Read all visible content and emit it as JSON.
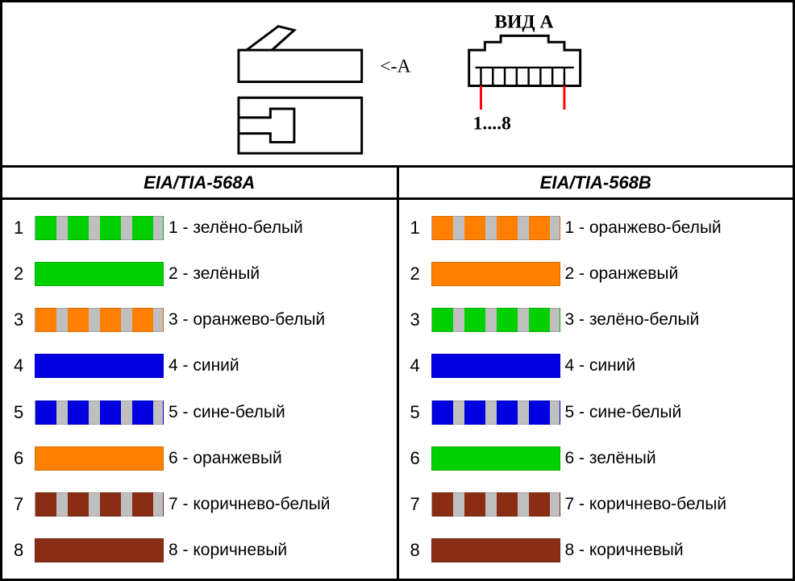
{
  "topLabels": {
    "view": "ВИД А",
    "arrow": "<-А",
    "pins": "1....8"
  },
  "colors": {
    "green": "#00d000",
    "orange": "#ff7f00",
    "blue": "#0000e0",
    "brown": "#8b2d14",
    "stripe": "#bfbfbf",
    "red": "#ff0000",
    "black": "#000000"
  },
  "swatch": {
    "width": 160,
    "height": 30,
    "stripeCount": 4
  },
  "standards": [
    {
      "title": "EIA/TIA-568A",
      "wires": [
        {
          "pin": 1,
          "label": "1 - зелёно-белый",
          "color": "green",
          "striped": true
        },
        {
          "pin": 2,
          "label": "2 - зелёный",
          "color": "green",
          "striped": false
        },
        {
          "pin": 3,
          "label": "3 - оранжево-белый",
          "color": "orange",
          "striped": true
        },
        {
          "pin": 4,
          "label": "4 - синий",
          "color": "blue",
          "striped": false
        },
        {
          "pin": 5,
          "label": "5 - сине-белый",
          "color": "blue",
          "striped": true
        },
        {
          "pin": 6,
          "label": "6 - оранжевый",
          "color": "orange",
          "striped": false
        },
        {
          "pin": 7,
          "label": "7 - коричнево-белый",
          "color": "brown",
          "striped": true
        },
        {
          "pin": 8,
          "label": "8 - коричневый",
          "color": "brown",
          "striped": false
        }
      ]
    },
    {
      "title": "EIA/TIA-568B",
      "wires": [
        {
          "pin": 1,
          "label": "1 - оранжево-белый",
          "color": "orange",
          "striped": true
        },
        {
          "pin": 2,
          "label": "2 - оранжевый",
          "color": "orange",
          "striped": false
        },
        {
          "pin": 3,
          "label": "3 - зелёно-белый",
          "color": "green",
          "striped": true
        },
        {
          "pin": 4,
          "label": "4 - синий",
          "color": "blue",
          "striped": false
        },
        {
          "pin": 5,
          "label": "5 - сине-белый",
          "color": "blue",
          "striped": true
        },
        {
          "pin": 6,
          "label": "6 - зелёный",
          "color": "green",
          "striped": false
        },
        {
          "pin": 7,
          "label": "7 - коричнево-белый",
          "color": "brown",
          "striped": true
        },
        {
          "pin": 8,
          "label": "8 - коричневый",
          "color": "brown",
          "striped": false
        }
      ]
    }
  ]
}
